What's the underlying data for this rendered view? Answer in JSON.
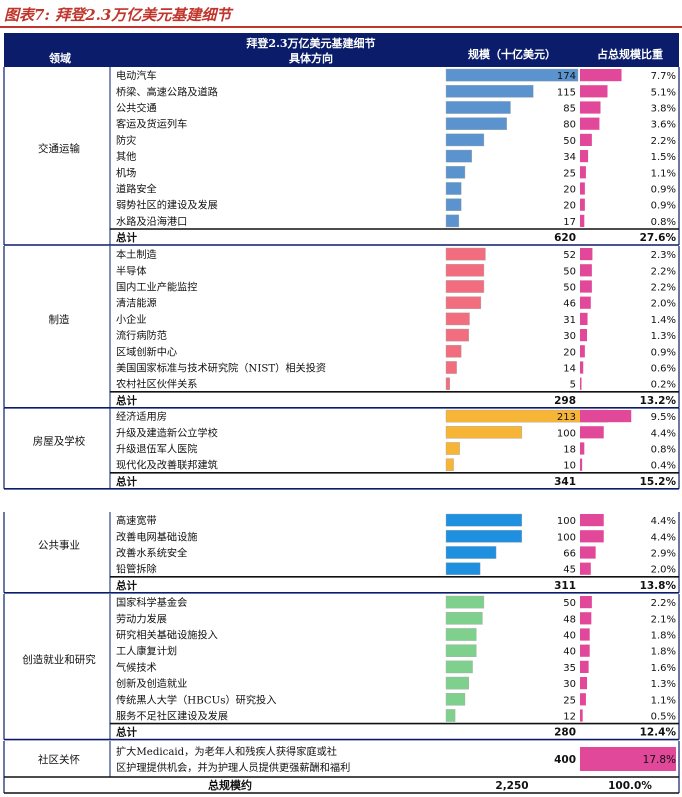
{
  "figure_title": "图表7: 拜登2.3万亿美元基建细节",
  "table": {
    "header": {
      "main_title": "拜登2.3万亿美元基建细节",
      "col_field": "领域",
      "col_direction": "具体方向",
      "col_scale": "规模（十亿美元）",
      "col_share": "占总规模比重"
    }
  },
  "chart_data": {
    "type": "table",
    "title": "拜登2.3万亿美元基建细节",
    "columns": [
      "领域",
      "具体方向",
      "规模（十亿美元）",
      "占总规模比重"
    ],
    "sections": [
      {
        "field": "交通运输",
        "bar_color": "#5b93cf",
        "items": [
          {
            "name": "电动汽车",
            "value": 174,
            "share": "7.7%"
          },
          {
            "name": "桥梁、高速公路及道路",
            "value": 115,
            "share": "5.1%"
          },
          {
            "name": "公共交通",
            "value": 85,
            "share": "3.8%"
          },
          {
            "name": "客运及货运列车",
            "value": 80,
            "share": "3.6%"
          },
          {
            "name": "防灾",
            "value": 50,
            "share": "2.2%"
          },
          {
            "name": "其他",
            "value": 34,
            "share": "1.5%"
          },
          {
            "name": "机场",
            "value": 25,
            "share": "1.1%"
          },
          {
            "name": "道路安全",
            "value": 20,
            "share": "0.9%"
          },
          {
            "name": "弱势社区的建设及发展",
            "value": 20,
            "share": "0.9%"
          },
          {
            "name": "水路及沿海港口",
            "value": 17,
            "share": "0.8%"
          }
        ],
        "total_label": "总计",
        "total_value": 620,
        "total_share": "27.6%"
      },
      {
        "field": "制造",
        "bar_color": "#f26d7d",
        "items": [
          {
            "name": "本土制造",
            "value": 52,
            "share": "2.3%"
          },
          {
            "name": "半导体",
            "value": 50,
            "share": "2.2%"
          },
          {
            "name": "国内工业产能监控",
            "value": 50,
            "share": "2.2%"
          },
          {
            "name": "清洁能源",
            "value": 46,
            "share": "2.0%"
          },
          {
            "name": "小企业",
            "value": 31,
            "share": "1.4%"
          },
          {
            "name": "流行病防范",
            "value": 30,
            "share": "1.3%"
          },
          {
            "name": "区域创新中心",
            "value": 20,
            "share": "0.9%"
          },
          {
            "name": "美国国家标准与技术研究院（NIST）相关投资",
            "value": 14,
            "share": "0.6%"
          },
          {
            "name": "农村社区伙伴关系",
            "value": 5,
            "share": "0.2%"
          }
        ],
        "total_label": "总计",
        "total_value": 298,
        "total_share": "13.2%"
      },
      {
        "field": "房屋及学校",
        "bar_color": "#f7b538",
        "items": [
          {
            "name": "经济适用房",
            "value": 213,
            "share": "9.5%"
          },
          {
            "name": "升级及建造新公立学校",
            "value": 100,
            "share": "4.4%"
          },
          {
            "name": "升级退伍军人医院",
            "value": 18,
            "share": "0.8%"
          },
          {
            "name": "现代化及改善联邦建筑",
            "value": 10,
            "share": "0.4%"
          }
        ],
        "total_label": "总计",
        "total_value": 341,
        "total_share": "15.2%"
      },
      {
        "field": "公共事业",
        "bar_color": "#1f8fe0",
        "items": [
          {
            "name": "高速宽带",
            "value": 100,
            "share": "4.4%"
          },
          {
            "name": "改善电网基础设施",
            "value": 100,
            "share": "4.4%"
          },
          {
            "name": "改善水系统安全",
            "value": 66,
            "share": "2.9%"
          },
          {
            "name": "铅管拆除",
            "value": 45,
            "share": "2.0%"
          }
        ],
        "total_label": "总计",
        "total_value": 311,
        "total_share": "13.8%"
      },
      {
        "field": "创造就业和研究",
        "bar_color": "#7fd08d",
        "items": [
          {
            "name": "国家科学基金会",
            "value": 50,
            "share": "2.2%"
          },
          {
            "name": "劳动力发展",
            "value": 48,
            "share": "2.1%"
          },
          {
            "name": "研究相关基础设施投入",
            "value": 40,
            "share": "1.8%"
          },
          {
            "name": "工人康复计划",
            "value": 40,
            "share": "1.8%"
          },
          {
            "name": "气候技术",
            "value": 35,
            "share": "1.6%"
          },
          {
            "name": "创新及创造就业",
            "value": 30,
            "share": "1.3%"
          },
          {
            "name": "传统黑人大学（HBCUs）研究投入",
            "value": 25,
            "share": "1.1%"
          },
          {
            "name": "服务不足社区建设及发展",
            "value": 12,
            "share": "0.5%"
          }
        ],
        "total_label": "总计",
        "total_value": 280,
        "total_share": "12.4%"
      },
      {
        "field": "社区关怀",
        "bar_color": null,
        "items": [
          {
            "name": "扩大Medicaid，为老年人和残疾人获得家庭或社区护理提供机会，并为护理人员提供更强薪酬和福利",
            "value": 400,
            "share": "17.8%"
          }
        ],
        "total_label": null,
        "total_value": null,
        "total_share": null
      }
    ],
    "grand_total": {
      "label": "总规模约",
      "value": "2,250",
      "share": "100.0%"
    },
    "share_max_percent": 17.8,
    "value_bar_max": 174,
    "colors": {
      "header_bg": "#0b1d6a",
      "header_text": "#ffffff",
      "share_bar": "#e2489a",
      "divider": "#0b1d6a",
      "title_red": "#c0362c"
    }
  }
}
